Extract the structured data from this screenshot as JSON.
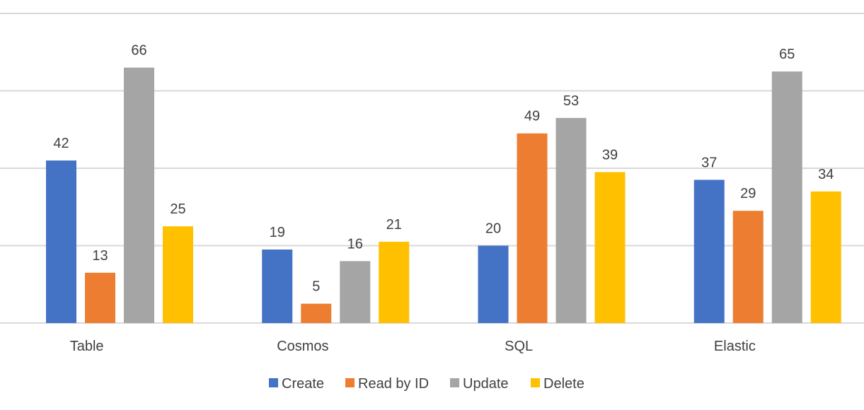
{
  "chart_data": {
    "type": "bar",
    "title": "",
    "xlabel": "",
    "ylabel": "",
    "categories": [
      "Table",
      "Cosmos",
      "SQL",
      "Elastic"
    ],
    "series": [
      {
        "name": "Create",
        "color": "#4472c4",
        "values": [
          42,
          19,
          20,
          37
        ]
      },
      {
        "name": "Read by ID",
        "color": "#ed7d31",
        "values": [
          13,
          5,
          49,
          29
        ]
      },
      {
        "name": "Update",
        "color": "#a5a5a5",
        "values": [
          66,
          16,
          53,
          65
        ]
      },
      {
        "name": "Delete",
        "color": "#ffc000",
        "values": [
          25,
          21,
          39,
          34
        ]
      }
    ],
    "ylim": [
      0,
      80
    ],
    "y_gridlines": [
      0,
      20,
      40,
      60,
      80
    ],
    "y_tick_labels_shown": false,
    "grid": true,
    "legend_position": "bottom",
    "data_labels": true
  }
}
